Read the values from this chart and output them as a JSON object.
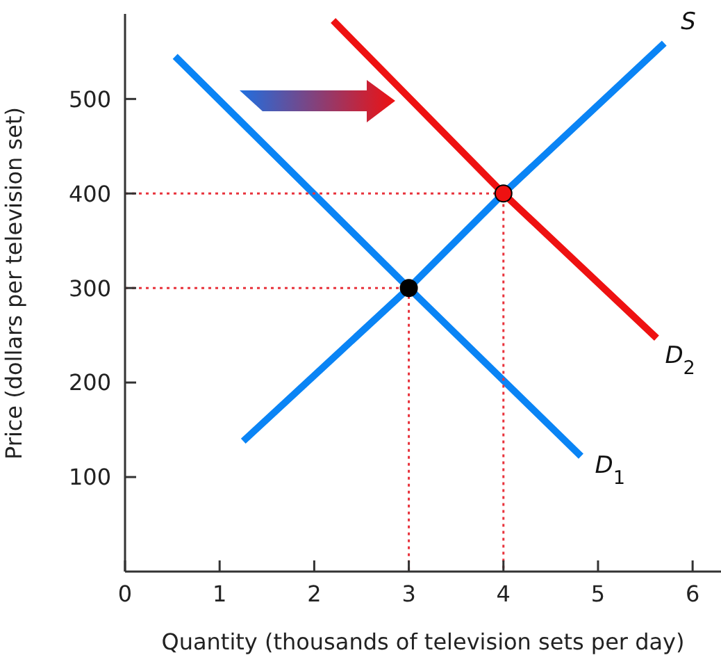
{
  "chart_data": {
    "type": "line",
    "xlabel": "Quantity (thousands of television sets per day)",
    "ylabel": "Price (dollars per  television set)",
    "xlim": [
      0,
      6.3
    ],
    "ylim": [
      0,
      590
    ],
    "xticks": [
      0,
      1,
      2,
      3,
      4,
      5,
      6
    ],
    "yticks": [
      100,
      200,
      300,
      400,
      500
    ],
    "grid": false,
    "legend": false,
    "series": [
      {
        "name": "S",
        "color": "#0a84f5",
        "x": [
          1.25,
          3,
          4,
          5.7
        ],
        "values": [
          138,
          300,
          400,
          559
        ]
      },
      {
        "name": "D$_{1}$",
        "color": "#0a84f5",
        "x": [
          0.53,
          3,
          4.82
        ],
        "values": [
          545,
          300,
          122
        ]
      },
      {
        "name": "D$_{2}$",
        "color": "#ee1111",
        "x": [
          2.2,
          4,
          5.62
        ],
        "values": [
          583,
          400,
          247
        ]
      },
      {
        "line_style": "dotted",
        "color": "#e8333c",
        "x": [
          0,
          3,
          3
        ],
        "values": [
          300,
          300,
          0
        ]
      },
      {
        "line_style": "dotted",
        "color": "#e8333c",
        "x": [
          0,
          4,
          4
        ],
        "values": [
          400,
          400,
          0
        ]
      },
      {
        "type": "scatter",
        "marker": "circle",
        "color": "#000000",
        "x": [
          3
        ],
        "values": [
          300
        ]
      },
      {
        "type": "scatter",
        "marker": "circle",
        "color": "#ee1111",
        "x": [
          4
        ],
        "values": [
          400
        ]
      }
    ]
  }
}
